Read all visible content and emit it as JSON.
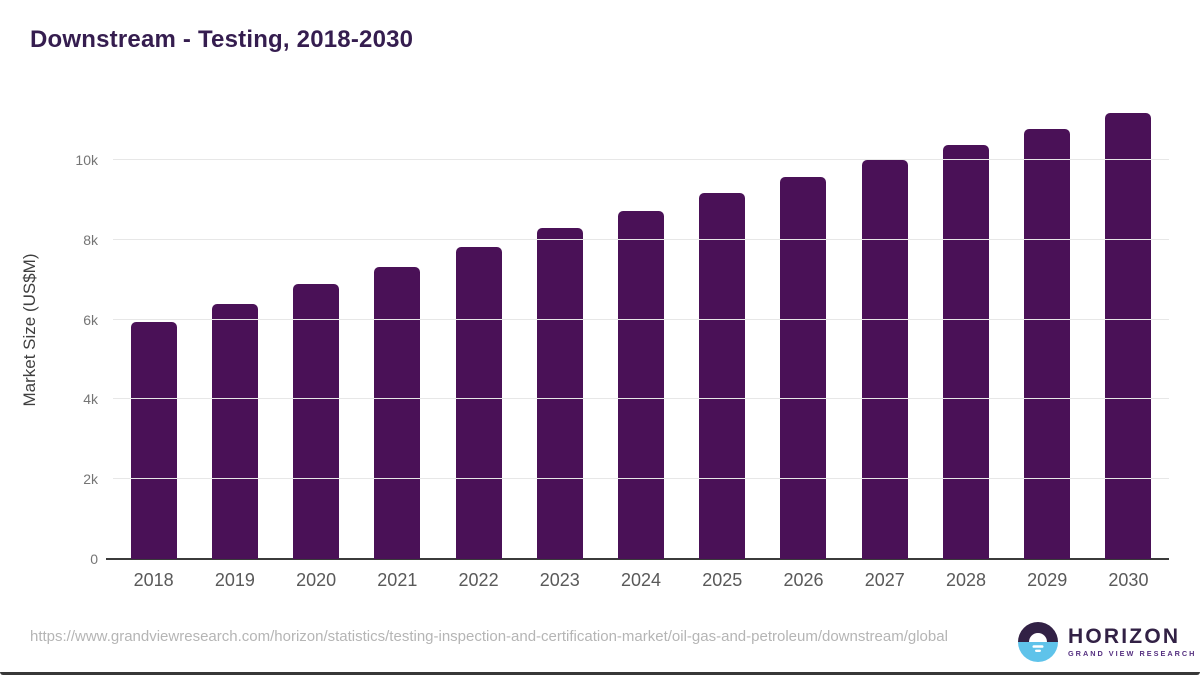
{
  "page": {
    "source_url": "https://www.grandviewresearch.com/horizon/statistics/testing-inspection-and-certification-market/oil-gas-and-petroleum/downstream/global"
  },
  "chart_data": {
    "type": "bar",
    "title": "Downstream - Testing, 2018-2030",
    "categories": [
      "2018",
      "2019",
      "2020",
      "2021",
      "2022",
      "2023",
      "2024",
      "2025",
      "2026",
      "2027",
      "2028",
      "2029",
      "2030"
    ],
    "values": [
      5950,
      6400,
      6880,
      7310,
      7810,
      8290,
      8730,
      9170,
      9560,
      9990,
      10380,
      10770,
      11170
    ],
    "series_name": "Market Size",
    "xlabel": "",
    "ylabel": "Market Size (US$M)",
    "ylim": [
      0,
      11500
    ],
    "ytick_interval": 2000,
    "ytick_labels": [
      "0",
      "2k",
      "4k",
      "6k",
      "8k",
      "10k"
    ],
    "grid": true,
    "legend_position": "none",
    "bar_color": "#4a1157"
  },
  "branding": {
    "logo_name": "HORIZON",
    "logo_subtitle": "GRAND VIEW RESEARCH",
    "logo_dark_color": "#322145",
    "logo_blue_color": "#5fc3ea"
  },
  "colors": {
    "title": "#351d4f",
    "axis_title": "#3f3f3f",
    "ytick_label": "#757575",
    "xtick_label": "#595959",
    "gridline": "#e7e7e7",
    "baseline": "#3b3b3b",
    "url_text": "#b5b5b5"
  }
}
